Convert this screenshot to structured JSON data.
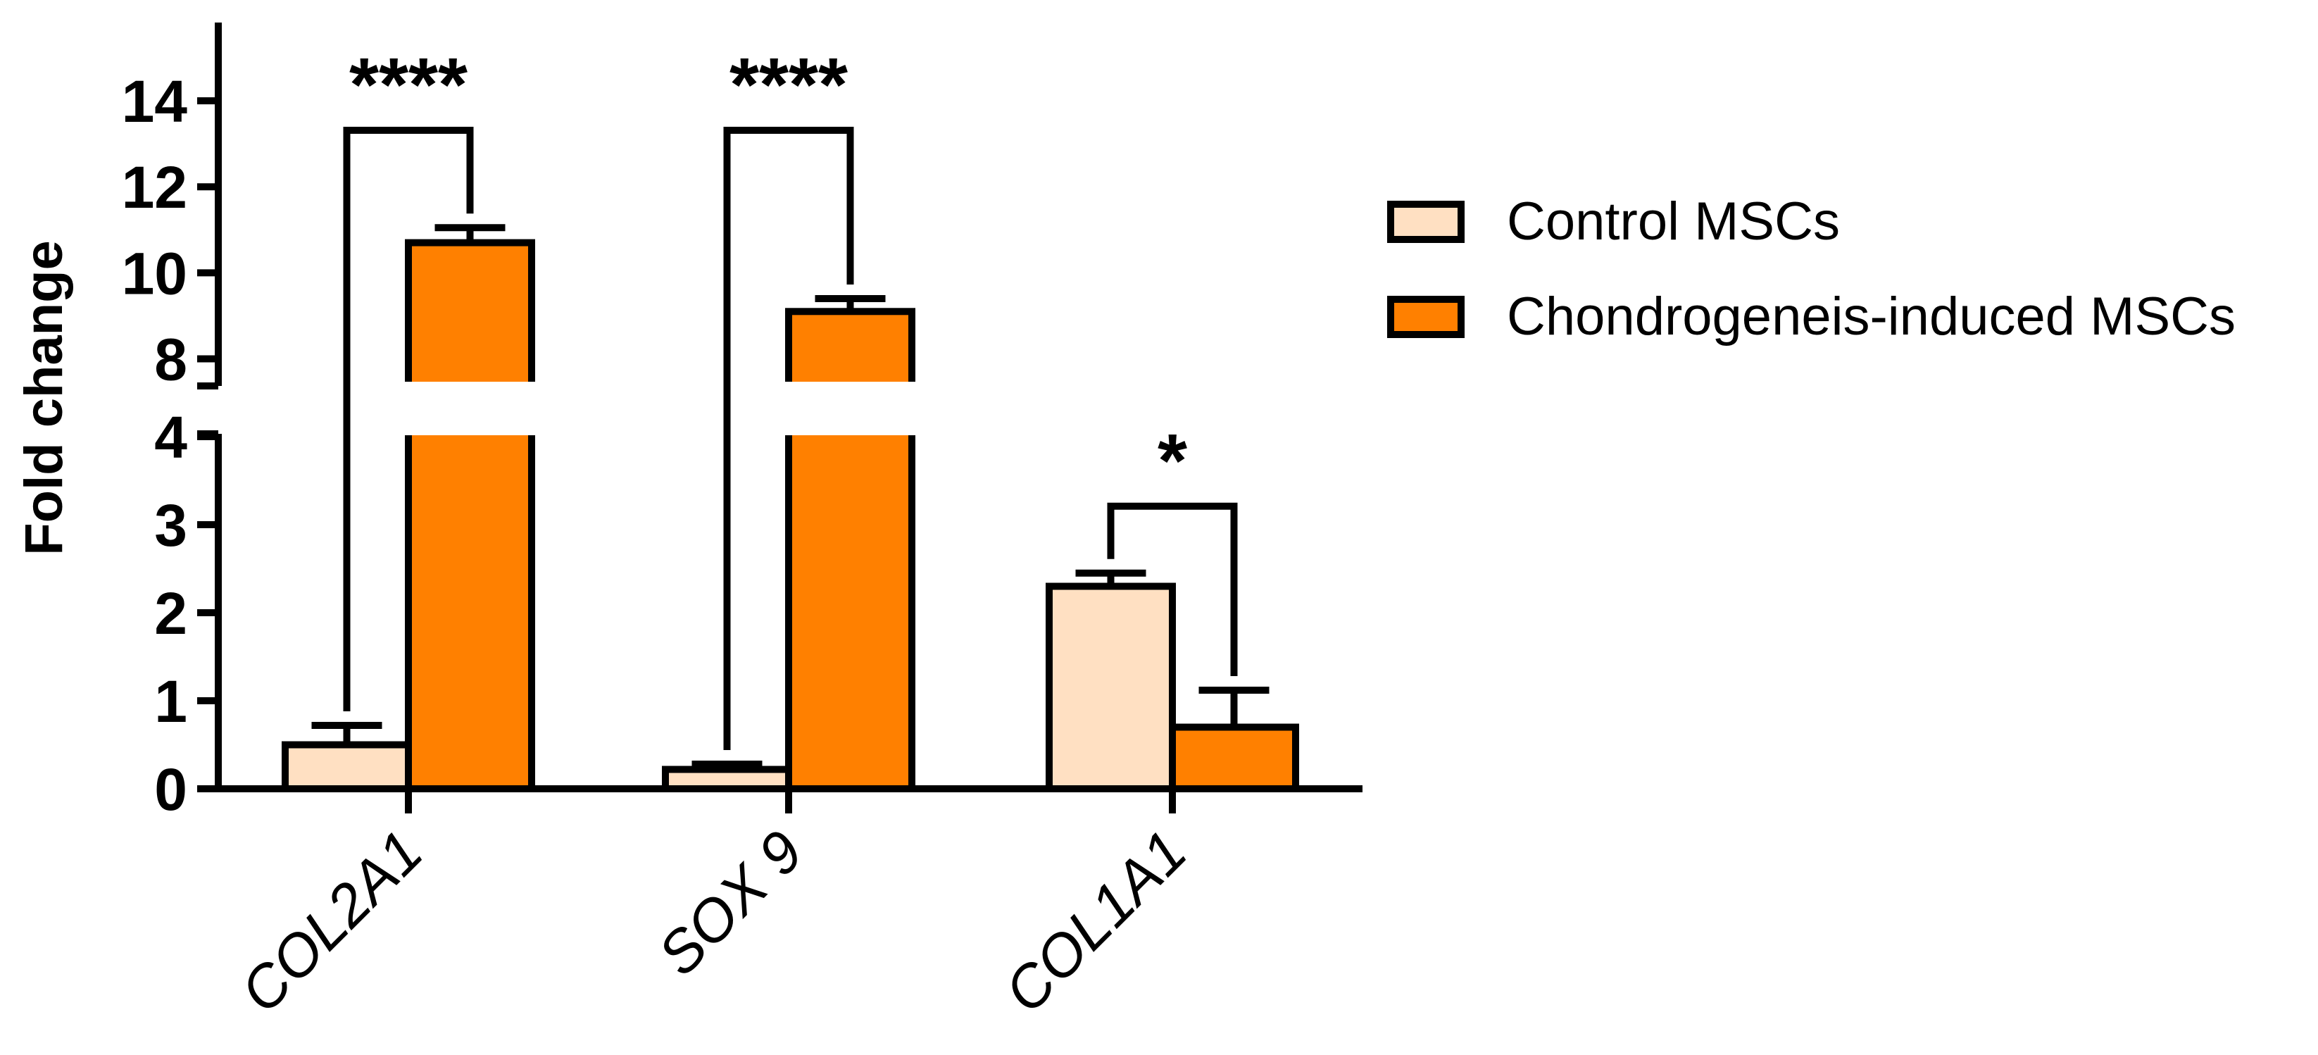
{
  "chart_data": {
    "type": "bar",
    "ylabel": "Fold change",
    "categories": [
      "COL2A1",
      "SOX 9",
      "COL1A1"
    ],
    "series": [
      {
        "name": "Control MSCs",
        "color": "#FFE0C2",
        "values": [
          0.5,
          0.22,
          2.3
        ],
        "errors": [
          0.22,
          0.06,
          0.15
        ]
      },
      {
        "name": "Chondrogeneis-induced MSCs",
        "color": "#FF8000",
        "values": [
          10.7,
          9.1,
          0.7
        ],
        "errors": [
          0.35,
          0.3,
          0.42
        ]
      }
    ],
    "y_axis_segments": [
      {
        "range": [
          0,
          4
        ],
        "ticks": [
          0,
          1,
          2,
          3,
          4
        ]
      },
      {
        "range": [
          7.5,
          15
        ],
        "ticks": [
          8,
          10,
          12,
          14
        ]
      }
    ],
    "significance": [
      "****",
      "****",
      "*"
    ],
    "legend_position": "right"
  }
}
